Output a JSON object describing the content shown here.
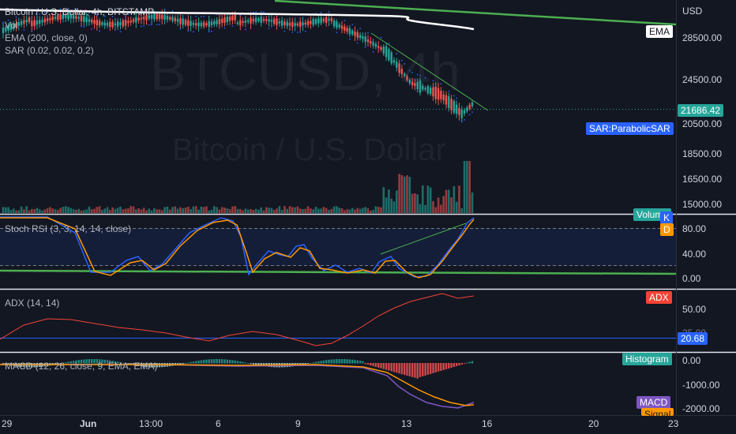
{
  "chart": {
    "symbol_title": "Bitcoin / U.S. Dollar, 4h, BITSTAMP",
    "watermark_symbol": "BTCUSD, 4h",
    "watermark_name": "Bitcoin / U.S. Dollar",
    "currency": "USD",
    "current_price": "21686.42",
    "main_price_labels": [
      "28500.00",
      "24500.00",
      "20500.00",
      "18500.00",
      "16500.00",
      "15000.00"
    ],
    "legends": {
      "vol": "Vol",
      "ema": "EMA (200, close, 0)",
      "sar": "SAR (0.02, 0.02, 0.2)",
      "stoch": "Stoch RSI (3, 3, 14, 14, close)",
      "adx": "ADX (14, 14)",
      "macd": "MACD (12, 26, close, 9, EMA, EMA)"
    },
    "tags": {
      "ema": "EMA",
      "sar": "SAR:ParabolicSAR",
      "volume": "Volume",
      "k": "K",
      "d": "D",
      "adx": "ADX",
      "adx_value": "20.68",
      "histogram": "Histogram",
      "macd": "MACD",
      "signal": "Signal"
    },
    "stoch_labels": [
      "80.00",
      "40.00",
      "0.00"
    ],
    "adx_labels": [
      "50.00",
      "25.00"
    ],
    "macd_labels": [
      "0.00",
      "-1000.00",
      "-2000.00"
    ],
    "x_labels": [
      "29",
      "Jun",
      "13:00",
      "6",
      "9",
      "13",
      "16",
      "20",
      "23"
    ],
    "colors": {
      "up": "#26a69a",
      "down": "#ef5350",
      "ema": "#ffffff",
      "sar": "#2962ff",
      "trendline": "#4caf50",
      "stoch_k": "#2962ff",
      "stoch_d": "#ff9800",
      "adx": "#f44336",
      "macd": "#7e57c2",
      "signal": "#ff9800"
    }
  }
}
